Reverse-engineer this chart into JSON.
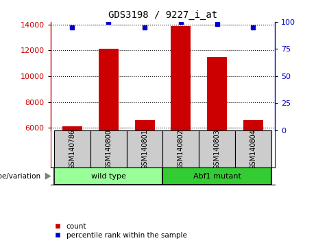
{
  "title": "GDS3198 / 9227_i_at",
  "samples": [
    "GSM140786",
    "GSM140800",
    "GSM140801",
    "GSM140802",
    "GSM140803",
    "GSM140804"
  ],
  "counts": [
    6100,
    12100,
    6600,
    13900,
    11500,
    6600
  ],
  "percentiles": [
    95,
    100,
    95,
    100,
    98,
    95
  ],
  "ylim_left": [
    5800,
    14200
  ],
  "ylim_right": [
    0,
    100
  ],
  "yticks_left": [
    6000,
    8000,
    10000,
    12000,
    14000
  ],
  "yticks_right": [
    0,
    25,
    50,
    75,
    100
  ],
  "bar_color": "#cc0000",
  "dot_color": "#0000cc",
  "groups": [
    {
      "label": "wild type",
      "indices": [
        0,
        1,
        2
      ],
      "color": "#99ff99"
    },
    {
      "label": "Abf1 mutant",
      "indices": [
        3,
        4,
        5
      ],
      "color": "#33cc33"
    }
  ],
  "legend_count_label": "count",
  "legend_percentile_label": "percentile rank within the sample",
  "genotype_label": "genotype/variation",
  "sample_box_color": "#cccccc",
  "figsize": [
    4.61,
    3.54
  ],
  "dpi": 100
}
